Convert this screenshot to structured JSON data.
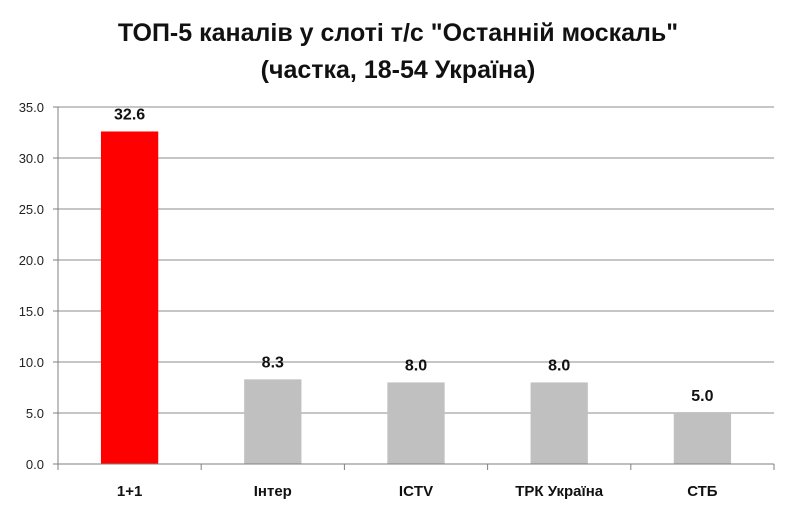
{
  "chart_data": {
    "type": "bar",
    "title_lines": [
      "ТОП-5 каналів у слоті т/с \"Останній москаль\"",
      "(частка, 18-54 Україна)"
    ],
    "categories": [
      "1+1",
      "Інтер",
      "ICTV",
      "ТРК Україна",
      "СТБ"
    ],
    "values": [
      32.6,
      8.3,
      8.0,
      8.0,
      5.0
    ],
    "value_labels": [
      "32.6",
      "8.3",
      "8.0",
      "8.0",
      "5.0"
    ],
    "ylim": [
      0,
      35
    ],
    "yticks": [
      "0.0",
      "5.0",
      "10.0",
      "15.0",
      "20.0",
      "25.0",
      "30.0",
      "35.0"
    ],
    "ytick_values": [
      0,
      5,
      10,
      15,
      20,
      25,
      30,
      35
    ],
    "grid": true,
    "legend": "none",
    "colors": {
      "highlight": "#ff0000",
      "default": "#c0c0c0",
      "grid": "#8c8c8c",
      "axis": "#7f7f7f"
    },
    "bar_colors": [
      "highlight",
      "default",
      "default",
      "default",
      "default"
    ]
  }
}
